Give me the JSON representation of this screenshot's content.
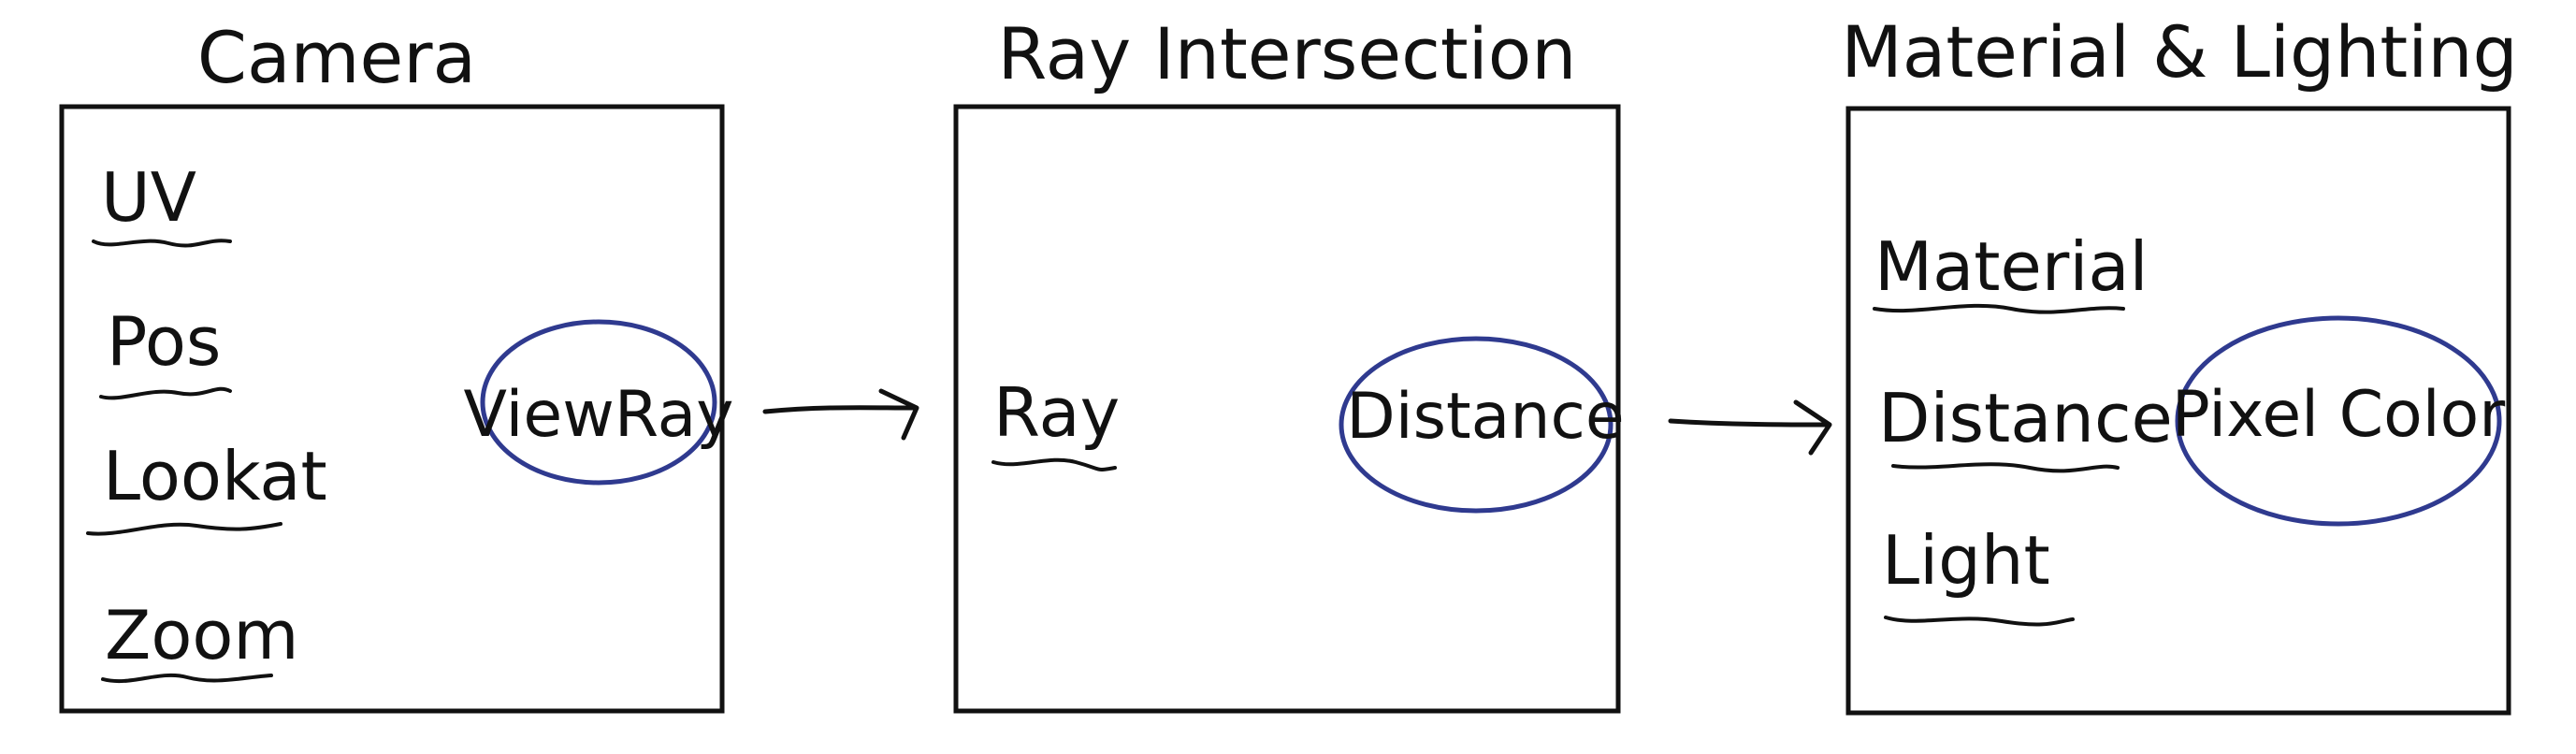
{
  "stages": [
    {
      "title": "Camera",
      "inputs": [
        "UV",
        "Pos",
        "Lookat",
        "Zoom"
      ],
      "output": "ViewRay"
    },
    {
      "title": "Ray Intersection",
      "inputs": [
        "Ray"
      ],
      "output": "Distance"
    },
    {
      "title": "Material & Lighting",
      "inputs": [
        "Material",
        "Distance",
        "Light"
      ],
      "output": "Pixel Color"
    }
  ],
  "colors": {
    "ink": "#111111",
    "circle": "#2f3a8f"
  }
}
